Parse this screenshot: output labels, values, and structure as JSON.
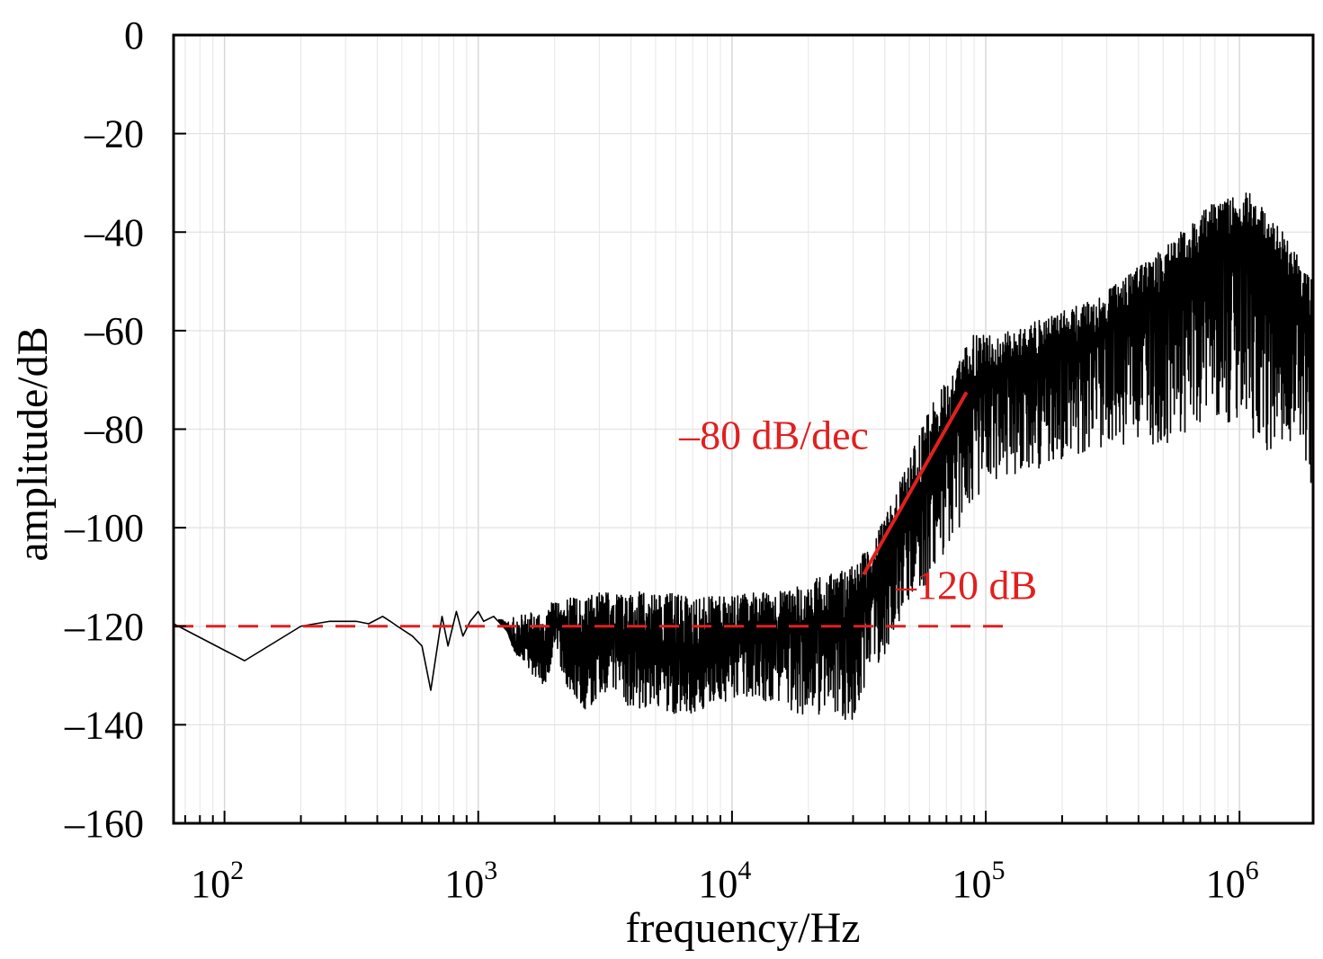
{
  "chart_data": {
    "type": "line",
    "xlabel": "frequency/Hz",
    "ylabel": "amplitude/dB",
    "x_scale": "log",
    "xlim": [
      63,
      1950000
    ],
    "ylim": [
      -160,
      0
    ],
    "x_ticks": [
      {
        "value": 100,
        "base": "10",
        "exp": "2"
      },
      {
        "value": 1000,
        "base": "10",
        "exp": "3"
      },
      {
        "value": 10000,
        "base": "10",
        "exp": "4"
      },
      {
        "value": 100000,
        "base": "10",
        "exp": "5"
      },
      {
        "value": 1000000,
        "base": "10",
        "exp": "6"
      }
    ],
    "y_ticks": [
      {
        "value": 0,
        "label": "0"
      },
      {
        "value": -20,
        "label": "–20"
      },
      {
        "value": -40,
        "label": "–40"
      },
      {
        "value": -60,
        "label": "–60"
      },
      {
        "value": -80,
        "label": "–80"
      },
      {
        "value": -100,
        "label": "–100"
      },
      {
        "value": -120,
        "label": "–120"
      },
      {
        "value": -140,
        "label": "–140"
      },
      {
        "value": -160,
        "label": "–160"
      }
    ],
    "grid": true,
    "series": [
      {
        "color": "#000000",
        "x": [
          63,
          120,
          200,
          260,
          330,
          370,
          420,
          450,
          480,
          550,
          600,
          650,
          700,
          720,
          760,
          820,
          870,
          930,
          1000,
          1050,
          1150,
          1300,
          1400,
          1600,
          1800,
          2000,
          2300,
          2600,
          3000,
          3500,
          4000,
          5000,
          6000,
          7000,
          8000,
          10000,
          12000,
          15000,
          18000,
          22000,
          26000,
          30000,
          35000,
          40000,
          50000,
          60000,
          70000,
          80000,
          90000,
          100000,
          130000,
          160000,
          200000,
          300000,
          400000,
          500000,
          600000,
          700000,
          800000,
          900000,
          1000000,
          1100000,
          1200000,
          1300000,
          1500000,
          1700000,
          1950000
        ],
        "y": [
          -119.5,
          -127,
          -120,
          -119,
          -119,
          -119.5,
          -118,
          -119,
          -120,
          -122,
          -124,
          -133,
          -122,
          -118,
          -124,
          -117,
          -122,
          -119,
          -117,
          -119,
          -118,
          -121,
          -125,
          -123,
          -127,
          -118,
          -122,
          -126,
          -124,
          -120,
          -124,
          -123,
          -125,
          -126,
          -124,
          -122,
          -122,
          -121,
          -120,
          -119,
          -118,
          -120,
          -114,
          -108,
          -97,
          -90,
          -82,
          -76,
          -70,
          -69,
          -68,
          -66,
          -64,
          -60,
          -56,
          -52,
          -48,
          -45,
          -43,
          -41,
          -40,
          -41,
          -43,
          -46,
          -48,
          -52,
          -60
        ],
        "envelope_low": [
          -119.5,
          -127,
          -120,
          -119,
          -119,
          -119.5,
          -118,
          -119,
          -120,
          -122,
          -124,
          -133,
          -122,
          -118,
          -124,
          -117,
          -122,
          -119,
          -117,
          -119,
          -118,
          -121,
          -126,
          -129,
          -133,
          -126,
          -134,
          -138,
          -134,
          -134,
          -137,
          -137,
          -138,
          -139,
          -136,
          -135,
          -135,
          -136,
          -138,
          -138,
          -141,
          -139,
          -130,
          -126,
          -115,
          -112,
          -104,
          -100,
          -95,
          -92,
          -90,
          -88,
          -86,
          -84,
          -83,
          -83,
          -82,
          -80,
          -79,
          -80,
          -80,
          -82,
          -84,
          -86,
          -84,
          -83,
          -94
        ],
        "envelope_high": [
          -119.5,
          -127,
          -120,
          -119,
          -119,
          -119.5,
          -118,
          -119,
          -120,
          -122,
          -124,
          -133,
          -122,
          -118,
          -124,
          -117,
          -122,
          -119,
          -117,
          -119,
          -118,
          -119,
          -118,
          -117,
          -116,
          -115,
          -114,
          -114,
          -113,
          -113,
          -113,
          -113,
          -113,
          -114,
          -114,
          -114,
          -113,
          -113,
          -112,
          -110,
          -109,
          -107,
          -104,
          -98,
          -86,
          -76,
          -70,
          -65,
          -60,
          -61,
          -60,
          -58,
          -56,
          -52,
          -47,
          -43,
          -39,
          -36,
          -34,
          -33,
          -32,
          -32,
          -34,
          -37,
          -40,
          -45,
          -50
        ]
      }
    ],
    "reference_line": {
      "y": -120,
      "style": "dashed",
      "color": "#e02020"
    },
    "slope_line": {
      "x": [
        33000,
        84000
      ],
      "y": [
        -109.5,
        -72.5
      ],
      "color": "#e02020"
    },
    "annotations": [
      {
        "text": "–80 dB/dec",
        "x": 14000,
        "y": -84,
        "color": "#e02020"
      },
      {
        "text": "–120 dB",
        "x": 100000,
        "y": -114.5,
        "color": "#e02020"
      }
    ]
  }
}
